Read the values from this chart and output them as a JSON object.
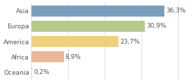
{
  "categories": [
    "Asia",
    "Europa",
    "America",
    "Africa",
    "Oceania"
  ],
  "values": [
    36.3,
    30.9,
    23.7,
    8.9,
    0.2
  ],
  "labels": [
    "36,3%",
    "30,9%",
    "23,7%",
    "8,9%",
    "0,2%"
  ],
  "bar_colors": [
    "#7a9ec0",
    "#b5c98a",
    "#f0d080",
    "#e8b898",
    "#f8c0b0"
  ],
  "xlim": [
    0,
    43
  ],
  "background_color": "#ffffff",
  "label_fontsize": 6.5,
  "tick_fontsize": 6.5,
  "bar_height": 0.72,
  "grid_color": "#dddddd",
  "grid_ticks": [
    0,
    10,
    20,
    30,
    40
  ],
  "text_color": "#555555"
}
